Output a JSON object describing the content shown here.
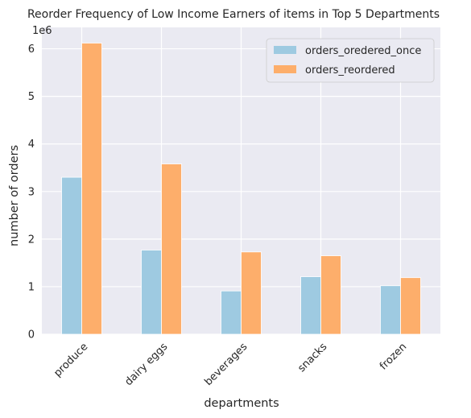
{
  "chart_data": {
    "type": "bar",
    "title": "Reorder Frequency of Low Income Earners of items in Top 5 Departments",
    "xlabel": "departments",
    "ylabel": "number of orders",
    "y_offset_label": "1e6",
    "categories": [
      "produce",
      "dairy eggs",
      "beverages",
      "snacks",
      "frozen"
    ],
    "series": [
      {
        "name": "orders_oredered_once",
        "color": "#9ecae1",
        "values": [
          3300000,
          1770000,
          910000,
          1210000,
          1020000
        ]
      },
      {
        "name": "orders_reordered",
        "color": "#fdae6b",
        "values": [
          6120000,
          3580000,
          1730000,
          1650000,
          1190000
        ]
      }
    ],
    "ylim": [
      0,
      6450000
    ],
    "yticks": [
      0,
      1,
      2,
      3,
      4,
      5,
      6
    ],
    "ytick_scale": 1000000,
    "grid": true,
    "legend_position": "top-right",
    "background": "#eaeaf2"
  }
}
